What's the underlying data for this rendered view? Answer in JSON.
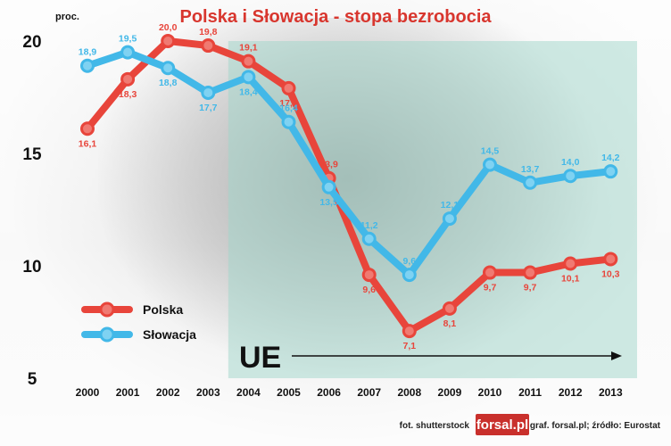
{
  "colors": {
    "polska": "#e8453b",
    "slowacja": "#42b8e8",
    "ue_area": "#9fd6c9",
    "title": "#d8362e"
  },
  "chart_data": {
    "type": "line",
    "title": "Polska i Słowacja - stopa bezrobocia",
    "ylabel": "proc.",
    "xlabel": "",
    "x": [
      "2000",
      "2001",
      "2002",
      "2003",
      "2004",
      "2005",
      "2006",
      "2007",
      "2008",
      "2009",
      "2010",
      "2011",
      "2012",
      "2013"
    ],
    "ylim": [
      5,
      20
    ],
    "yticks": [
      5,
      10,
      15,
      20
    ],
    "series": [
      {
        "name": "Polska",
        "color": "#e8453b",
        "values": [
          16.1,
          18.3,
          20.0,
          19.8,
          19.1,
          17.9,
          13.9,
          9.6,
          7.1,
          8.1,
          9.7,
          9.7,
          10.1,
          10.3
        ],
        "labels": [
          "16,1",
          "18,3",
          "20,0",
          "19,8",
          "19,1",
          "17,9",
          "13,9",
          "9,6",
          "7,1",
          "8,1",
          "9,7",
          "9,7",
          "10,1",
          "10,3"
        ]
      },
      {
        "name": "Słowacja",
        "color": "#42b8e8",
        "values": [
          18.9,
          19.5,
          18.8,
          17.7,
          18.4,
          16.4,
          13.5,
          11.2,
          9.6,
          12.1,
          14.5,
          13.7,
          14.0,
          14.2
        ],
        "labels": [
          "18,9",
          "19,5",
          "18,8",
          "17,7",
          "18,4",
          "16,4",
          "13,5",
          "11,2",
          "9,6",
          "12,1",
          "14,5",
          "13,7",
          "14,0",
          "14,2"
        ]
      }
    ],
    "legend": "lower-left",
    "annotation": {
      "text": "UE",
      "start": "2004"
    },
    "grid": false
  },
  "footer": {
    "photo_credit": "fot. shutterstock",
    "logo": "forsal.pl",
    "source": "graf. forsal.pl; źródło: Eurostat"
  }
}
